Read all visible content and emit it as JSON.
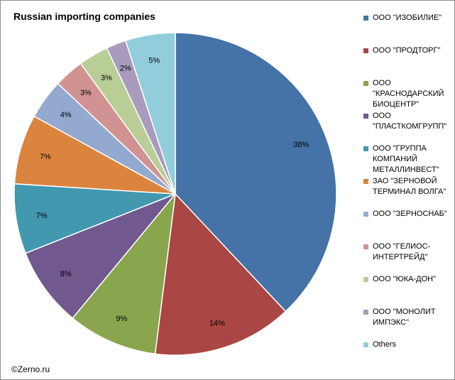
{
  "chart_data": {
    "type": "pie",
    "title": "Russian importing companies",
    "start_angle": "12 o'clock, clockwise",
    "legend_position": "right",
    "slices": [
      {
        "label": [
          "ООО \"ИЗОБИЛИЕ\""
        ],
        "value": 38,
        "value_label": "38%",
        "color": "#4572a7"
      },
      {
        "label": [
          "ООО \"ПРОДТОРГ\""
        ],
        "value": 14,
        "value_label": "14%",
        "color": "#aa4643"
      },
      {
        "label": [
          "ООО",
          "\"КРАСНОДАРСКИЙ",
          "БИОЦЕНТР\""
        ],
        "value": 9,
        "value_label": "9%",
        "color": "#89a54e"
      },
      {
        "label": [
          "ООО",
          "\"ПЛАСТКОМГРУПП\""
        ],
        "value": 8,
        "value_label": "8%",
        "color": "#71588f"
      },
      {
        "label": [
          "ООО \"ГРУППА",
          "КОМПАНИЙ",
          "МЕТАЛЛИНВЕСТ\""
        ],
        "value": 7,
        "value_label": "7%",
        "color": "#4198af"
      },
      {
        "label": [
          "ЗАО \"ЗЕРНОВОЙ",
          "ТЕРМИНАЛ ВОЛГА\""
        ],
        "value": 7,
        "value_label": "7%",
        "color": "#db843d"
      },
      {
        "label": [
          "ООО \"ЗЕРНОСНАБ\""
        ],
        "value": 4,
        "value_label": "4%",
        "color": "#93a9cf"
      },
      {
        "label": [
          "ООО \"ГЕЛИОС-",
          "ИНТЕРТРЕЙД\""
        ],
        "value": 3,
        "value_label": "3%",
        "color": "#d19392"
      },
      {
        "label": [
          "ООО \"ЮКА-ДОН\""
        ],
        "value": 3,
        "value_label": "3%",
        "color": "#b9cd96"
      },
      {
        "label": [
          "ООО \"МОНОЛИТ",
          "ИМПЭКС\""
        ],
        "value": 2,
        "value_label": "2%",
        "color": "#a99bbd"
      },
      {
        "label": [
          "Others"
        ],
        "value": 5,
        "value_label": "5%",
        "color": "#92cddc"
      }
    ]
  },
  "footer": {
    "copyright": "©Zerno.ru"
  }
}
